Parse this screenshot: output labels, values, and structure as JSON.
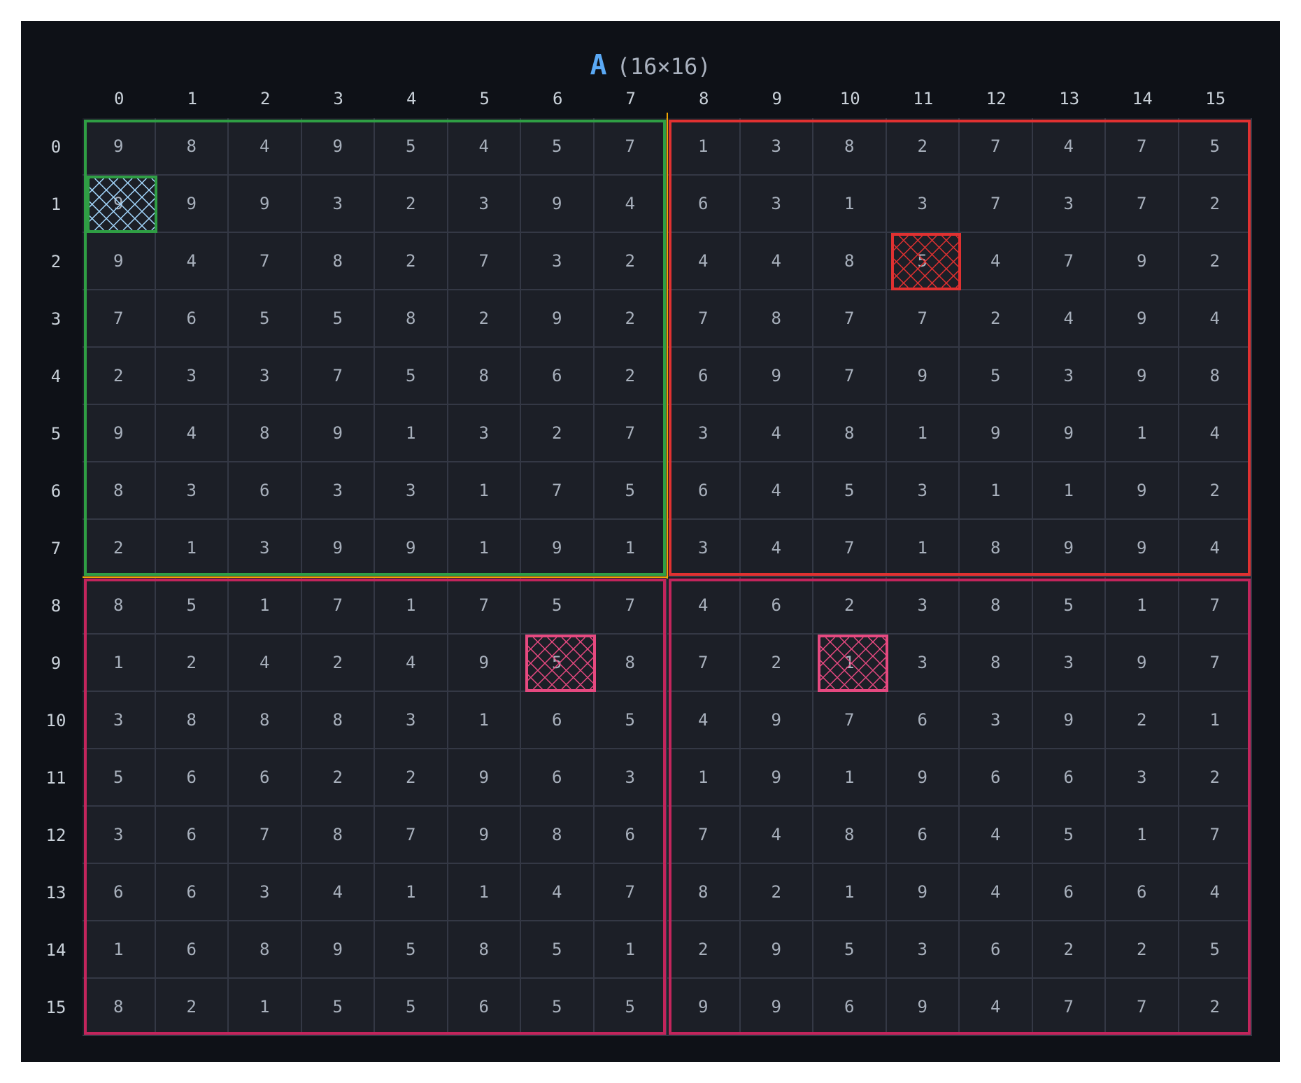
{
  "title": {
    "name": "A",
    "dims": "(16×16)"
  },
  "col_labels": [
    "0",
    "1",
    "2",
    "3",
    "4",
    "5",
    "6",
    "7",
    "8",
    "9",
    "10",
    "11",
    "12",
    "13",
    "14",
    "15"
  ],
  "row_labels": [
    "0",
    "1",
    "2",
    "3",
    "4",
    "5",
    "6",
    "7",
    "8",
    "9",
    "10",
    "11",
    "12",
    "13",
    "14",
    "15"
  ],
  "matrix": [
    [
      9,
      8,
      4,
      9,
      5,
      4,
      5,
      7,
      1,
      3,
      8,
      2,
      7,
      4,
      7,
      5
    ],
    [
      9,
      9,
      9,
      3,
      2,
      3,
      9,
      4,
      6,
      3,
      1,
      3,
      7,
      3,
      7,
      2
    ],
    [
      9,
      4,
      7,
      8,
      2,
      7,
      3,
      2,
      4,
      4,
      8,
      5,
      4,
      7,
      9,
      2
    ],
    [
      7,
      6,
      5,
      5,
      8,
      2,
      9,
      2,
      7,
      8,
      7,
      7,
      2,
      4,
      9,
      4
    ],
    [
      2,
      3,
      3,
      7,
      5,
      8,
      6,
      2,
      6,
      9,
      7,
      9,
      5,
      3,
      9,
      8
    ],
    [
      9,
      4,
      8,
      9,
      1,
      3,
      2,
      7,
      3,
      4,
      8,
      1,
      9,
      9,
      1,
      4
    ],
    [
      8,
      3,
      6,
      3,
      3,
      1,
      7,
      5,
      6,
      4,
      5,
      3,
      1,
      1,
      9,
      2
    ],
    [
      2,
      1,
      3,
      9,
      9,
      1,
      9,
      1,
      3,
      4,
      7,
      1,
      8,
      9,
      9,
      4
    ],
    [
      8,
      5,
      1,
      7,
      1,
      7,
      5,
      7,
      4,
      6,
      2,
      3,
      8,
      5,
      1,
      7
    ],
    [
      1,
      2,
      4,
      2,
      4,
      9,
      5,
      8,
      7,
      2,
      1,
      3,
      8,
      3,
      9,
      7
    ],
    [
      3,
      8,
      8,
      8,
      3,
      1,
      6,
      5,
      4,
      9,
      7,
      6,
      3,
      9,
      2,
      1
    ],
    [
      5,
      6,
      6,
      2,
      2,
      9,
      6,
      3,
      1,
      9,
      1,
      9,
      6,
      6,
      3,
      2
    ],
    [
      3,
      6,
      7,
      8,
      7,
      9,
      8,
      6,
      7,
      4,
      8,
      6,
      4,
      5,
      1,
      7
    ],
    [
      6,
      6,
      3,
      4,
      1,
      1,
      4,
      7,
      8,
      2,
      1,
      9,
      4,
      6,
      6,
      4
    ],
    [
      1,
      6,
      8,
      9,
      5,
      8,
      5,
      1,
      2,
      9,
      5,
      3,
      6,
      2,
      2,
      5
    ],
    [
      8,
      2,
      1,
      5,
      5,
      6,
      5,
      5,
      9,
      9,
      6,
      9,
      4,
      7,
      7,
      2
    ]
  ],
  "regions": [
    {
      "name": "top-left-block",
      "rows": [
        0,
        7
      ],
      "cols": [
        0,
        7
      ],
      "color": "#2f9e44"
    },
    {
      "name": "top-right-block",
      "rows": [
        0,
        7
      ],
      "cols": [
        8,
        15
      ],
      "color": "#e03131"
    },
    {
      "name": "bottom-left-block",
      "rows": [
        8,
        15
      ],
      "cols": [
        0,
        7
      ],
      "color": "#c2255c"
    },
    {
      "name": "bottom-right-block",
      "rows": [
        8,
        15
      ],
      "cols": [
        8,
        15
      ],
      "color": "#c2255c"
    }
  ],
  "split_lines_color": "#f0a500",
  "marked_cells": [
    {
      "row": 1,
      "col": 0,
      "border": "#2f9e44",
      "hatch": "#a5d8ff"
    },
    {
      "row": 2,
      "col": 11,
      "border": "#e03131",
      "hatch": "#e03131"
    },
    {
      "row": 9,
      "col": 6,
      "border": "#e64980",
      "hatch": "#e64980"
    },
    {
      "row": 9,
      "col": 10,
      "border": "#e64980",
      "hatch": "#e64980"
    }
  ]
}
